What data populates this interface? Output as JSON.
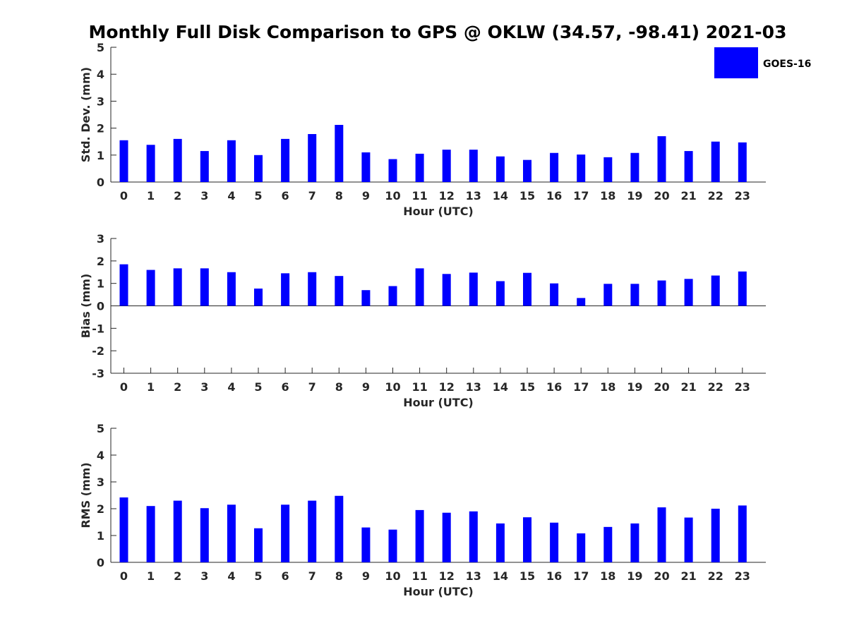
{
  "chart_data": {
    "type": "bar",
    "title": "Monthly Full Disk Comparison to GPS @ OKLW (34.57, -98.41) 2021-03",
    "legend": {
      "label": "GOES-16",
      "color": "#0000ff",
      "placement": "top-right"
    },
    "categories": [
      "0",
      "1",
      "2",
      "3",
      "4",
      "5",
      "6",
      "7",
      "8",
      "9",
      "10",
      "11",
      "12",
      "13",
      "14",
      "15",
      "16",
      "17",
      "18",
      "19",
      "20",
      "21",
      "22",
      "23"
    ],
    "subplots": [
      {
        "name": "std-dev",
        "ylabel": "Std. Dev. (mm)",
        "xlabel": "Hour (UTC)",
        "ylim": [
          0,
          5
        ],
        "yticks": [
          "0",
          "1",
          "2",
          "3",
          "4",
          "5"
        ],
        "series": [
          {
            "name": "GOES-16",
            "values": [
              1.55,
              1.38,
              1.6,
              1.15,
              1.55,
              1.0,
              1.6,
              1.78,
              2.12,
              1.1,
              0.85,
              1.05,
              1.2,
              1.2,
              0.95,
              0.82,
              1.08,
              1.02,
              0.92,
              1.08,
              1.7,
              1.15,
              1.5,
              1.47
            ]
          }
        ]
      },
      {
        "name": "bias",
        "ylabel": "Bias (mm)",
        "xlabel": "Hour (UTC)",
        "ylim": [
          -3,
          3
        ],
        "yticks": [
          "-3",
          "-2",
          "-1",
          "0",
          "1",
          "2",
          "3"
        ],
        "series": [
          {
            "name": "GOES-16",
            "values": [
              1.85,
              1.6,
              1.67,
              1.67,
              1.5,
              0.77,
              1.45,
              1.5,
              1.33,
              0.7,
              0.88,
              1.67,
              1.42,
              1.48,
              1.1,
              1.47,
              1.0,
              0.35,
              0.98,
              0.98,
              1.13,
              1.2,
              1.35,
              1.53
            ]
          }
        ]
      },
      {
        "name": "rms",
        "ylabel": "RMS (mm)",
        "xlabel": "Hour (UTC)",
        "ylim": [
          0,
          5
        ],
        "yticks": [
          "0",
          "1",
          "2",
          "3",
          "4",
          "5"
        ],
        "series": [
          {
            "name": "GOES-16",
            "values": [
              2.42,
              2.1,
              2.3,
              2.02,
              2.15,
              1.27,
              2.15,
              2.3,
              2.48,
              1.3,
              1.22,
              1.95,
              1.85,
              1.9,
              1.45,
              1.68,
              1.48,
              1.08,
              1.32,
              1.45,
              2.05,
              1.67,
              2.0,
              2.12
            ]
          }
        ]
      }
    ]
  }
}
